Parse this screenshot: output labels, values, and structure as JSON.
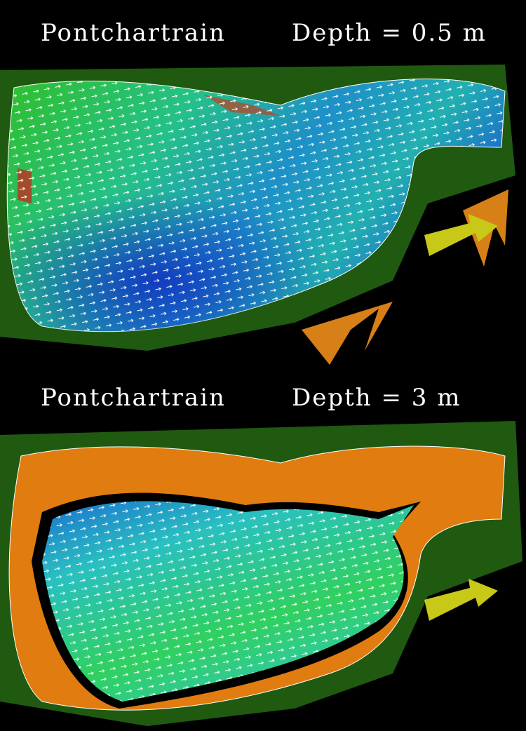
{
  "panels": [
    {
      "title": "Pontchartrain",
      "depth": "Depth = 0.5 m"
    },
    {
      "title": "Pontchartrain",
      "depth": "Depth = 3 m"
    }
  ]
}
